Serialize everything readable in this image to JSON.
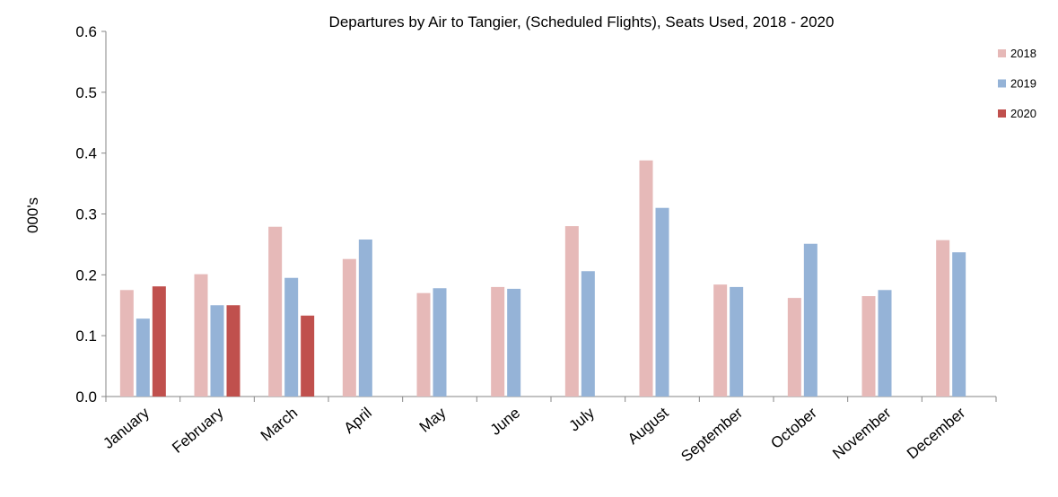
{
  "chart_data": {
    "type": "bar",
    "title": "Departures by Air to Tangier, (Scheduled Flights), Seats Used, 2018 - 2020",
    "y_label": "000's",
    "categories": [
      "January",
      "February",
      "March",
      "April",
      "May",
      "June",
      "July",
      "August",
      "September",
      "October",
      "November",
      "December"
    ],
    "series": [
      {
        "name": "2018",
        "color": "#e6b9b8",
        "values": [
          0.175,
          0.201,
          0.279,
          0.226,
          0.17,
          0.18,
          0.28,
          0.388,
          0.184,
          0.162,
          0.165,
          0.257
        ]
      },
      {
        "name": "2019",
        "color": "#95b3d7",
        "values": [
          0.128,
          0.15,
          0.195,
          0.258,
          0.178,
          0.177,
          0.206,
          0.31,
          0.18,
          0.251,
          0.175,
          0.237
        ]
      },
      {
        "name": "2020",
        "color": "#c0504d",
        "values": [
          0.181,
          0.15,
          0.133,
          null,
          null,
          null,
          null,
          null,
          null,
          null,
          null,
          null
        ]
      }
    ],
    "ylim": [
      0,
      0.6
    ],
    "yticks": [
      {
        "value": 0,
        "label": "0.0"
      },
      0.1,
      0.2,
      0.3,
      0.4,
      0.5,
      0.6
    ],
    "legend": "right"
  }
}
